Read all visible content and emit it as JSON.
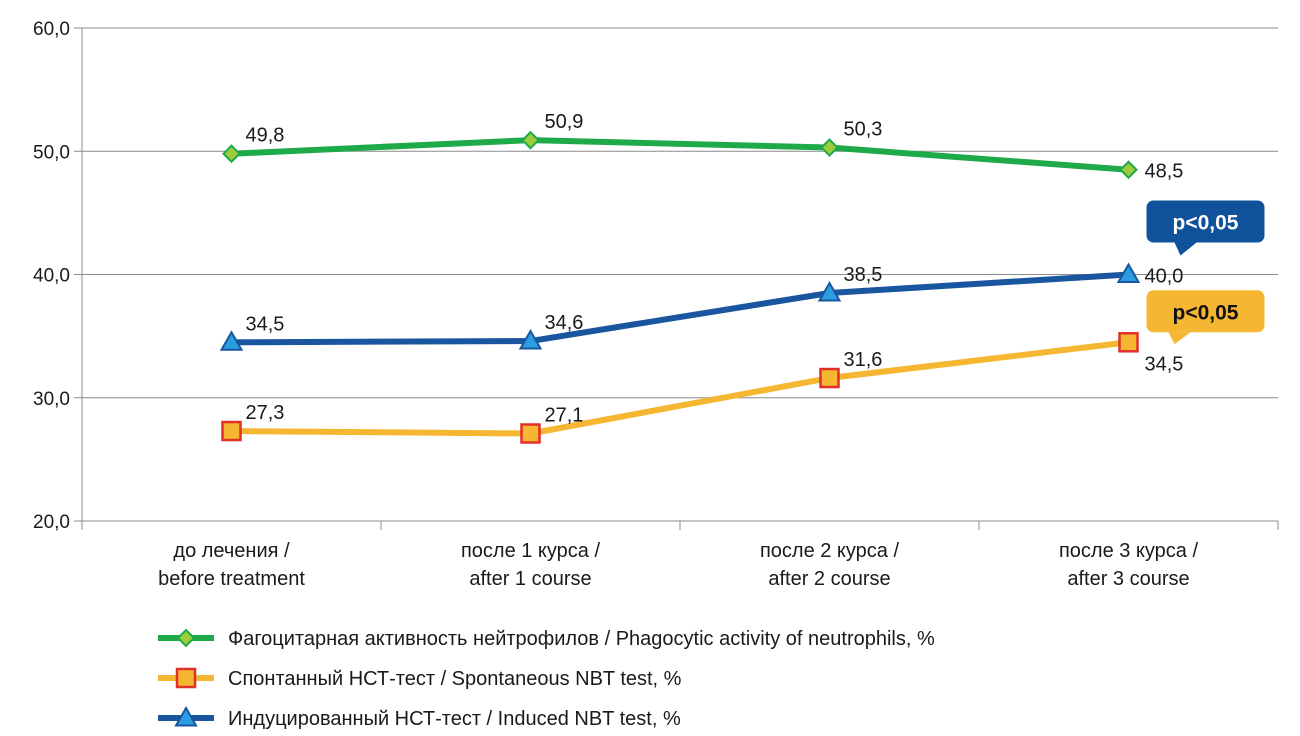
{
  "chart_data": {
    "type": "line",
    "categories": [
      [
        "до лечения /",
        "before treatment"
      ],
      [
        "после 1 курса /",
        "after 1 course"
      ],
      [
        "после 2 курса /",
        "after 2 course"
      ],
      [
        "после 3 курса /",
        "after 3 course"
      ]
    ],
    "ylim": [
      20,
      60
    ],
    "y_ticks": [
      20,
      30,
      40,
      50,
      60
    ],
    "y_tick_labels": [
      "20,0",
      "30,0",
      "40,0",
      "50,0",
      "60,0"
    ],
    "grid": true,
    "legend_position": "bottom",
    "series": [
      {
        "name": "Фагоцитарная активность нейтрофилов / Phagocytic activity of neutrophils, %",
        "values": [
          49.8,
          50.9,
          50.3,
          48.5
        ],
        "labels": [
          "49,8",
          "50,9",
          "50,3",
          "48,5"
        ],
        "color": "#1faa4a",
        "marker_fill": "#9ccc3c",
        "marker": "diamond"
      },
      {
        "name": "Спонтанный НСТ-тест / Spontaneous NBT test, %",
        "values": [
          27.3,
          27.1,
          31.6,
          34.5
        ],
        "labels": [
          "27,3",
          "27,1",
          "31,6",
          "34,5"
        ],
        "color": "#f5b731",
        "marker_fill": "#f5b731",
        "marker_stroke": "#e0302a",
        "marker": "square"
      },
      {
        "name": "Индуцированный НСТ-тест / Induced NBT test, %",
        "values": [
          34.5,
          34.6,
          38.5,
          40.0
        ],
        "labels": [
          "34,5",
          "34,6",
          "38,5",
          "40,0"
        ],
        "color": "#1a56a0",
        "marker_fill": "#2a9ee0",
        "marker": "triangle"
      }
    ],
    "annotations": [
      {
        "text": "p<0,05",
        "color": "#10519c",
        "text_color": "#ffffff",
        "series": 2
      },
      {
        "text": "p<0,05",
        "color": "#f5b731",
        "text_color": "#111111",
        "series": 1
      }
    ]
  }
}
